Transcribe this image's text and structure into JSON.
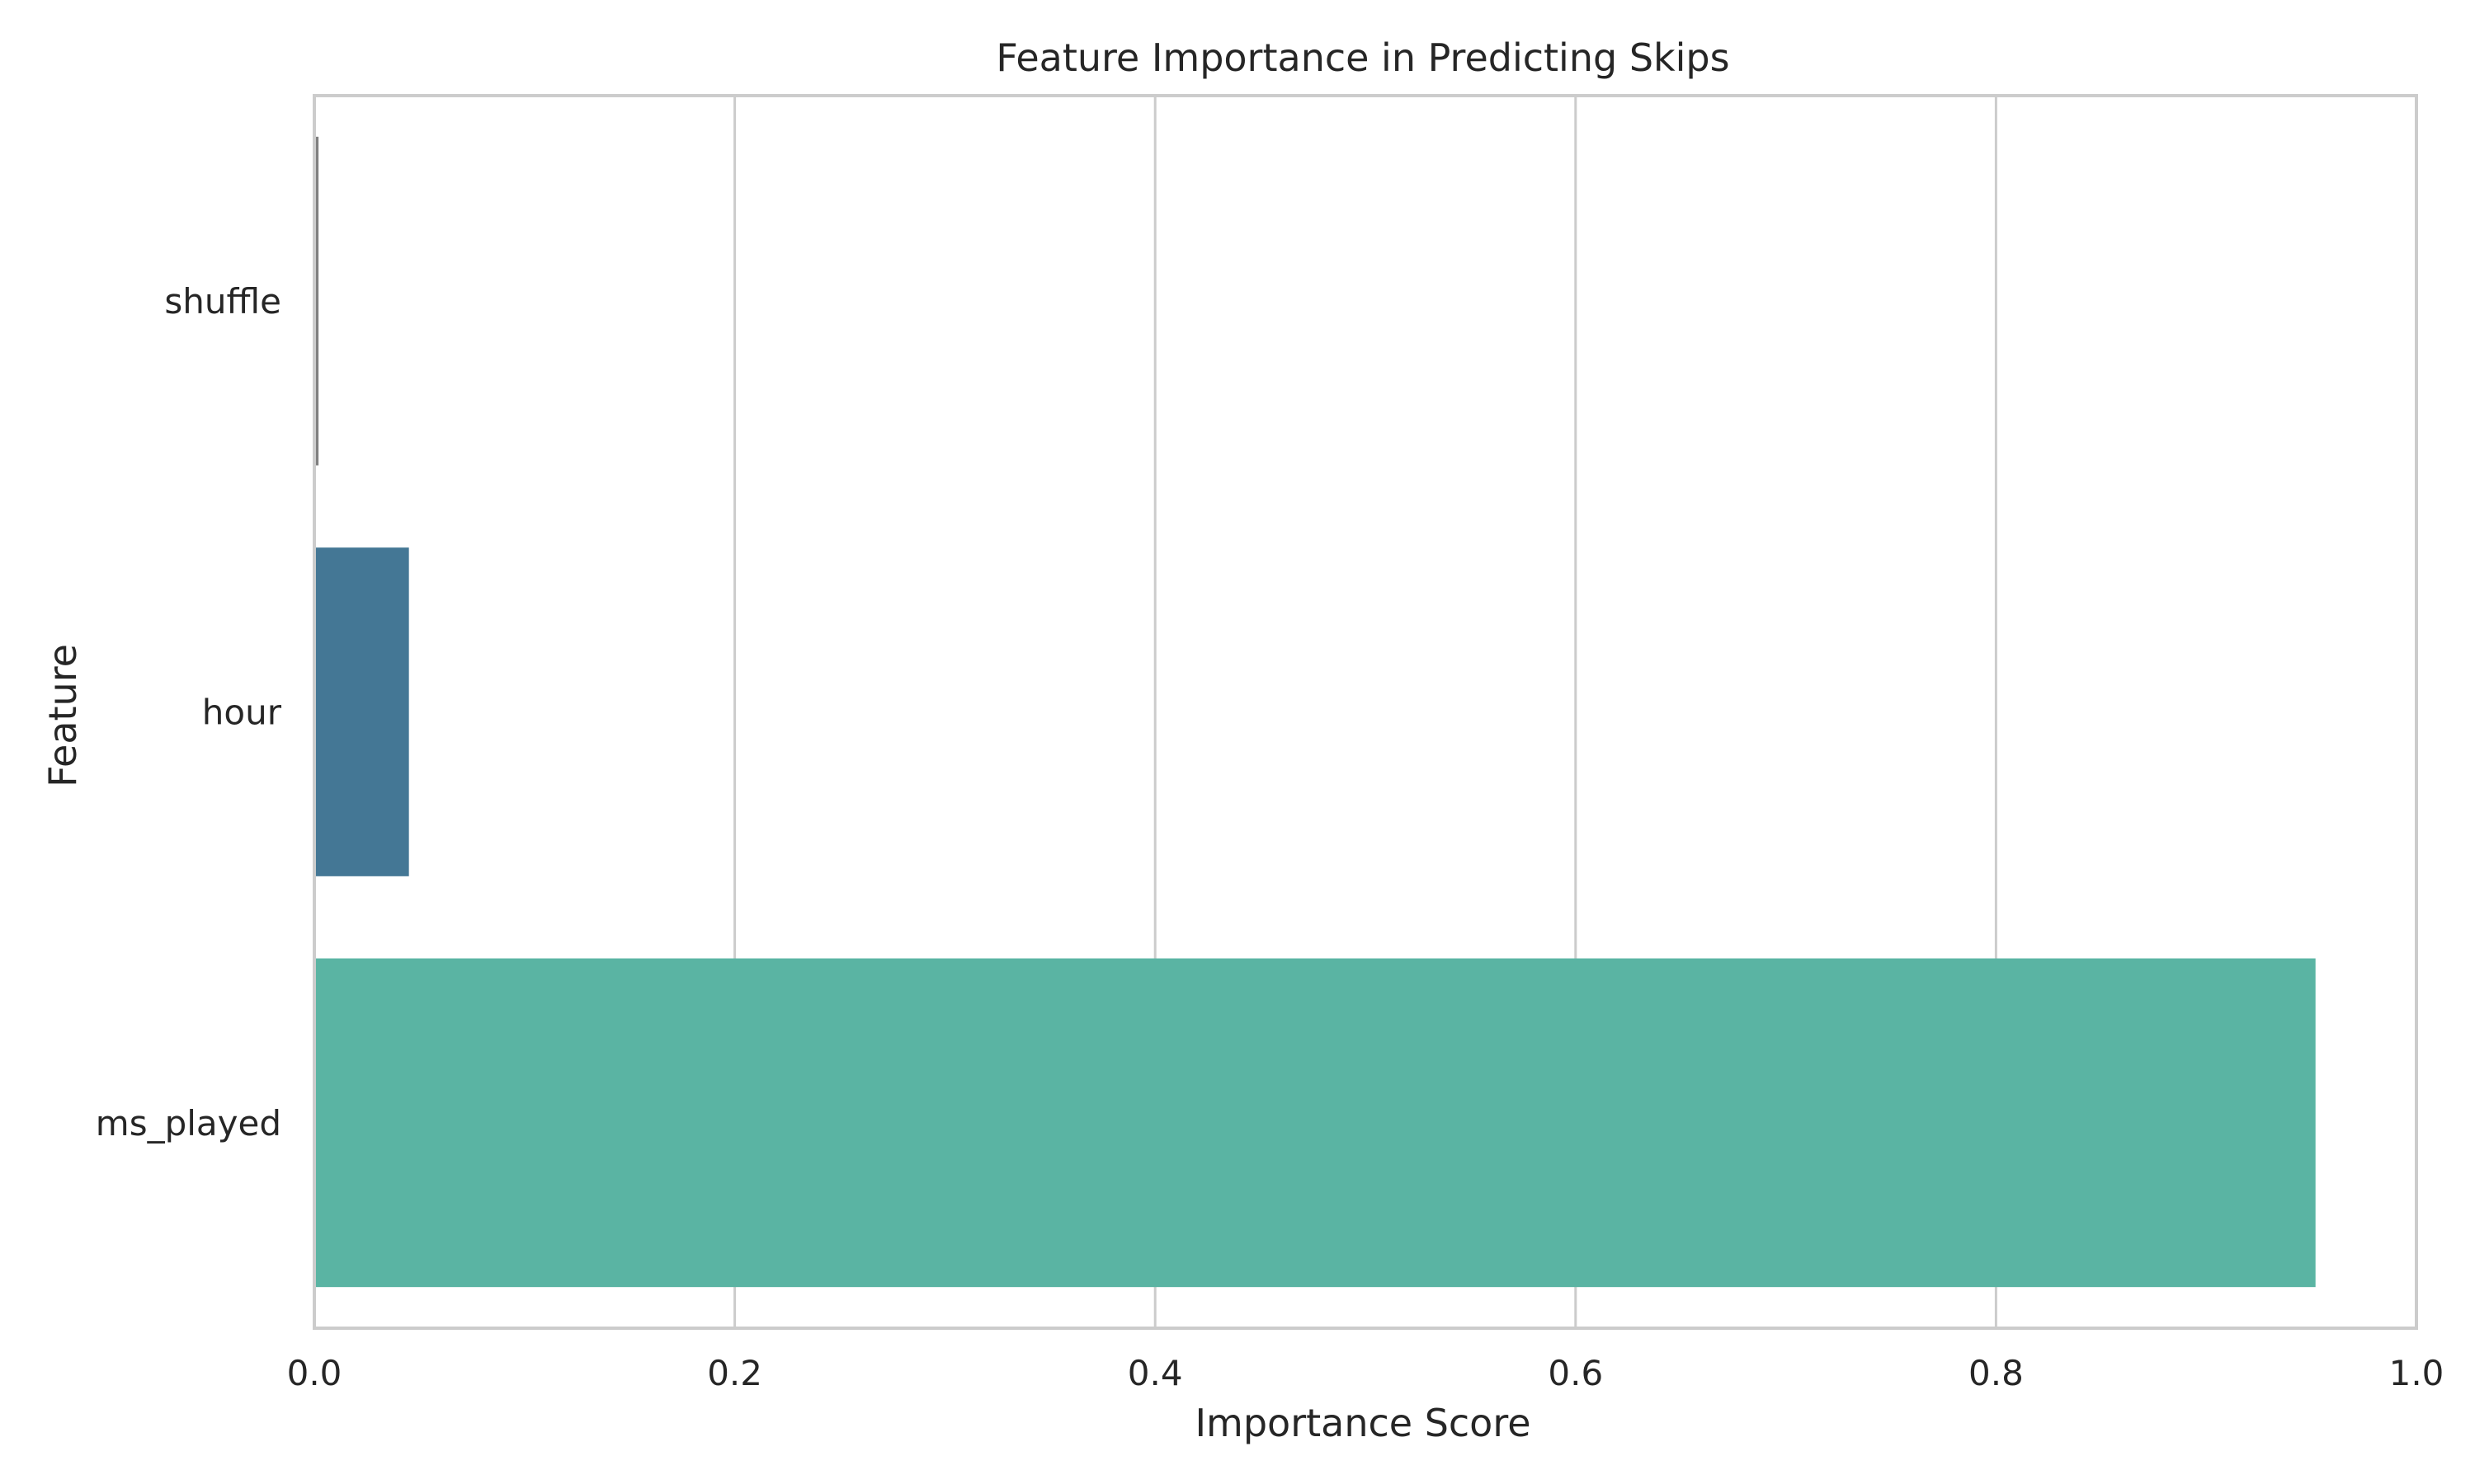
{
  "chart_data": {
    "type": "bar",
    "orientation": "horizontal",
    "title": "Feature Importance in Predicting Skips",
    "xlabel": "Importance Score",
    "ylabel": "Feature",
    "categories": [
      "shuffle",
      "hour",
      "ms_played"
    ],
    "values": [
      0.002,
      0.045,
      0.952
    ],
    "bar_colors": [
      "#808080",
      "#447795",
      "#5ab4a3"
    ],
    "xlim": [
      0,
      1.0
    ],
    "xticks": [
      "0.0",
      "0.2",
      "0.4",
      "0.6",
      "0.8",
      "1.0"
    ],
    "grid": "vertical",
    "legend": "none"
  }
}
